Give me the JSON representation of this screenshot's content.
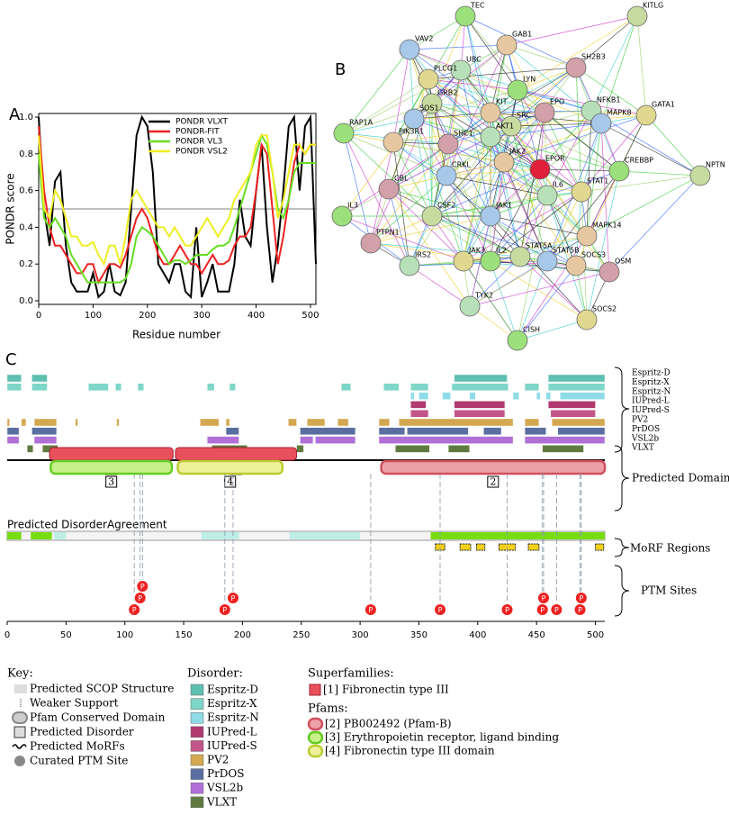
{
  "chart_data": {
    "type": "line",
    "label": "A",
    "x_label": "Residue number",
    "y_label": "PONDR score",
    "x": [
      0,
      10,
      20,
      30,
      40,
      50,
      60,
      70,
      80,
      90,
      100,
      110,
      120,
      130,
      140,
      150,
      160,
      170,
      180,
      190,
      200,
      210,
      220,
      230,
      240,
      250,
      260,
      270,
      280,
      290,
      300,
      310,
      320,
      330,
      340,
      350,
      360,
      370,
      380,
      390,
      400,
      410,
      420,
      430,
      440,
      450,
      460,
      470,
      480,
      490,
      500,
      510
    ],
    "series": [
      {
        "name": "PONDR VLXT",
        "color": "#000000",
        "values": [
          1.0,
          0.5,
          0.3,
          0.65,
          0.7,
          0.3,
          0.1,
          0.05,
          0.05,
          0.05,
          0.15,
          0.02,
          0.05,
          0.2,
          0.05,
          0.03,
          0.1,
          0.5,
          0.9,
          1.0,
          0.95,
          0.7,
          0.2,
          0.15,
          0.1,
          0.2,
          0.2,
          0.05,
          0.02,
          0.4,
          0.02,
          0.1,
          0.2,
          0.05,
          0.05,
          0.05,
          0.2,
          0.55,
          0.35,
          0.3,
          0.6,
          0.85,
          0.4,
          0.1,
          0.3,
          0.6,
          0.95,
          1.0,
          0.6,
          0.95,
          1.0,
          0.2
        ]
      },
      {
        "name": "PONDR-FIT",
        "color": "#ee2222",
        "values": [
          0.95,
          0.6,
          0.4,
          0.3,
          0.3,
          0.25,
          0.2,
          0.15,
          0.15,
          0.2,
          0.2,
          0.1,
          0.15,
          0.2,
          0.2,
          0.18,
          0.25,
          0.35,
          0.45,
          0.5,
          0.45,
          0.35,
          0.25,
          0.2,
          0.2,
          0.25,
          0.3,
          0.25,
          0.2,
          0.2,
          0.15,
          0.2,
          0.25,
          0.2,
          0.2,
          0.22,
          0.3,
          0.35,
          0.35,
          0.4,
          0.6,
          0.85,
          0.8,
          0.5,
          0.2,
          0.35,
          0.55,
          0.75,
          0.85,
          0.8,
          0.85,
          0.85
        ]
      },
      {
        "name": "PONDR VL3",
        "color": "#66dd22",
        "values": [
          0.8,
          0.45,
          0.4,
          0.45,
          0.4,
          0.35,
          0.25,
          0.2,
          0.15,
          0.1,
          0.1,
          0.1,
          0.1,
          0.1,
          0.1,
          0.1,
          0.12,
          0.2,
          0.35,
          0.4,
          0.38,
          0.35,
          0.3,
          0.25,
          0.2,
          0.22,
          0.22,
          0.2,
          0.22,
          0.25,
          0.25,
          0.25,
          0.28,
          0.3,
          0.3,
          0.32,
          0.4,
          0.5,
          0.6,
          0.7,
          0.8,
          0.9,
          0.85,
          0.7,
          0.5,
          0.45,
          0.55,
          0.7,
          0.75,
          0.75,
          0.75,
          0.75
        ]
      },
      {
        "name": "PONDR VSL2",
        "color": "#eeee22",
        "values": [
          0.9,
          0.5,
          0.45,
          0.6,
          0.55,
          0.45,
          0.35,
          0.35,
          0.3,
          0.3,
          0.32,
          0.25,
          0.2,
          0.3,
          0.3,
          0.2,
          0.35,
          0.55,
          0.6,
          0.55,
          0.5,
          0.45,
          0.4,
          0.4,
          0.35,
          0.4,
          0.35,
          0.3,
          0.3,
          0.35,
          0.4,
          0.45,
          0.4,
          0.35,
          0.4,
          0.45,
          0.55,
          0.6,
          0.65,
          0.7,
          0.85,
          0.9,
          0.9,
          0.7,
          0.45,
          0.55,
          0.7,
          0.85,
          0.85,
          0.8,
          0.85,
          0.85
        ]
      }
    ],
    "xlim": [
      0,
      510
    ],
    "xticks": [
      0,
      100,
      200,
      300,
      400,
      500
    ],
    "ylim": [
      0,
      1.0
    ],
    "yticks": [
      {
        "value": 0,
        "label": "0.0"
      },
      0.2,
      0.4,
      0.6,
      0.8,
      {
        "value": 1.0,
        "label": "1.0"
      }
    ],
    "threshold": 0.5,
    "legend": "upper right"
  },
  "network": {
    "label": "B",
    "nodes": [
      "TEC",
      "KITLG",
      "VAV2",
      "GAB1",
      "SH2B3",
      "UBC",
      "PLCG1",
      "LYN",
      "GRB2",
      "SOS1",
      "KIT",
      "EPO",
      "NFKB1",
      "GATA1",
      "RAP1A",
      "SRC",
      "MAPK8",
      "PIK3R1",
      "SHC1",
      "AKT1",
      "EPOR",
      "CREBBP",
      "NPTN",
      "CRKL",
      "JAK2",
      "CBL",
      "IL6",
      "STAT1",
      "IL3",
      "CSF2",
      "JAK1",
      "MAPK14",
      "PTPN1",
      "IRS2",
      "JAK3",
      "IL2",
      "STAT5A",
      "STAT5B",
      "SOCS3",
      "OSM",
      "TYK2",
      "SOCS2",
      "CISH"
    ]
  },
  "domain_map": {
    "label": "C",
    "xlim": [
      0,
      508
    ],
    "xticks": [
      0,
      50,
      100,
      150,
      200,
      250,
      300,
      350,
      400,
      450,
      500
    ],
    "tracks": [
      {
        "name": "Espritz-D",
        "color": "#5fbfb0",
        "segments": [
          [
            0,
            12
          ],
          [
            21,
            34
          ],
          [
            380,
            425
          ],
          [
            460,
            508
          ]
        ]
      },
      {
        "name": "Espritz-X",
        "color": "#7ed6c8",
        "segments": [
          [
            0,
            12
          ],
          [
            21,
            34
          ],
          [
            69,
            86
          ],
          [
            92,
            97
          ],
          [
            111,
            116
          ],
          [
            170,
            176
          ],
          [
            189,
            194
          ],
          [
            284,
            292
          ],
          [
            320,
            333
          ],
          [
            343,
            358
          ],
          [
            378,
            426
          ],
          [
            440,
            452
          ],
          [
            460,
            508
          ]
        ]
      },
      {
        "name": "Espritz-N",
        "color": "#8fdce8",
        "segments": [
          [
            343,
            346
          ],
          [
            350,
            358
          ],
          [
            370,
            377
          ],
          [
            393,
            398
          ],
          [
            430,
            435
          ],
          [
            450,
            453
          ],
          [
            458,
            462
          ],
          [
            470,
            508
          ]
        ]
      },
      {
        "name": "IUPred-L",
        "color": "#b03a70",
        "segments": [
          [
            343,
            356
          ],
          [
            380,
            423
          ],
          [
            460,
            500
          ]
        ]
      },
      {
        "name": "IUPred-S",
        "color": "#c2558a",
        "segments": [
          [
            343,
            358
          ],
          [
            380,
            423
          ],
          [
            462,
            500
          ]
        ]
      },
      {
        "name": "PV2",
        "color": "#d4a850",
        "segments": [
          [
            0,
            2
          ],
          [
            12,
            16
          ],
          [
            23,
            42
          ],
          [
            58,
            60
          ],
          [
            93,
            95
          ],
          [
            164,
            180
          ],
          [
            186,
            189
          ],
          [
            239,
            246
          ],
          [
            255,
            270
          ],
          [
            281,
            290
          ],
          [
            316,
            325
          ],
          [
            333,
            430
          ],
          [
            440,
            452
          ],
          [
            463,
            508
          ]
        ]
      },
      {
        "name": "PrDOS",
        "color": "#5a6fa0",
        "segments": [
          [
            0,
            10
          ],
          [
            21,
            42
          ],
          [
            186,
            197
          ],
          [
            249,
            296
          ],
          [
            316,
            338
          ],
          [
            340,
            392
          ],
          [
            405,
            420
          ],
          [
            440,
            458
          ],
          [
            468,
            508
          ]
        ]
      },
      {
        "name": "VSL2b",
        "color": "#b070d8",
        "segments": [
          [
            0,
            10
          ],
          [
            23,
            42
          ],
          [
            170,
            197
          ],
          [
            249,
            260
          ],
          [
            262,
            296
          ],
          [
            316,
            430
          ],
          [
            440,
            508
          ]
        ]
      },
      {
        "name": "VLXT",
        "color": "#607a40",
        "segments": [
          [
            17,
            22
          ],
          [
            30,
            43
          ],
          [
            174,
            204
          ],
          [
            246,
            252
          ],
          [
            330,
            359
          ],
          [
            375,
            393
          ],
          [
            455,
            490
          ]
        ]
      }
    ],
    "superfamilies_title": "Superfamilies:",
    "superfamilies": [
      {
        "label": "1",
        "name": "[1] Fibronectin type III",
        "color": "#e8505b",
        "domains": [
          [
            36,
            141
          ],
          [
            143,
            246
          ]
        ]
      }
    ],
    "pfams_title": "Pfams:",
    "pfams": [
      {
        "label": "2",
        "name": "[2] PB002492 (Pfam-B)",
        "color": "#d0505e",
        "fill": "#eca0a8",
        "start": 318,
        "end": 508
      },
      {
        "label": "3",
        "name": "[3] Erythropoietin receptor, ligand binding",
        "color": "#66cc22",
        "fill": "#c8f08a",
        "start": 37,
        "end": 140
      },
      {
        "label": "4",
        "name": "[4] Fibronectin type III domain",
        "color": "#bbcc33",
        "fill": "#eef09a",
        "start": 145,
        "end": 234
      }
    ],
    "agreement_title": "Predicted DisorderAgreement",
    "agreement_strong": [
      [
        0,
        12
      ],
      [
        20,
        38
      ],
      [
        360,
        508
      ]
    ],
    "agreement_weak": [
      [
        40,
        50
      ],
      [
        165,
        197
      ],
      [
        240,
        300
      ]
    ],
    "morfs": [
      [
        364,
        372
      ],
      [
        385,
        394
      ],
      [
        399,
        406
      ],
      [
        418,
        432
      ],
      [
        443,
        452
      ],
      [
        500,
        507
      ]
    ],
    "ptm_sites": [
      108,
      113,
      115,
      185,
      192,
      309,
      368,
      425,
      455,
      456,
      467,
      487,
      488
    ],
    "ptm_symbol": "P",
    "side_labels": {
      "domains": "Predicted Domains",
      "morfs": "MoRF Regions",
      "ptm": "PTM Sites"
    }
  },
  "key": {
    "title": "Key:",
    "items": [
      "Predicted SCOP Structure",
      "Weaker Support",
      "Pfam Conserved Domain",
      "Predicted Disorder",
      "Predicted MoRFs",
      "Curated PTM Site"
    ],
    "disorder_title": "Disorder:"
  }
}
